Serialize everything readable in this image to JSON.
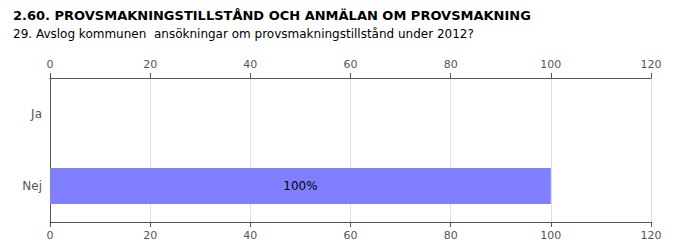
{
  "chart_data": {
    "type": "bar",
    "orientation": "horizontal",
    "title": "2.60. PROVSMAKNINGSTILLSTÅND OCH ANMÄLAN OM PROVSMAKNING",
    "subtitle": "29. Avslog kommunen  ansökningar om provsmakningstillstånd under 2012?",
    "categories": [
      "Ja",
      "Nej"
    ],
    "values": [
      0,
      100
    ],
    "value_labels": [
      null,
      "100%"
    ],
    "data_labels": true,
    "color": "#8080ff",
    "xlim": [
      0,
      120
    ],
    "xticks": [
      0,
      20,
      40,
      60,
      80,
      100,
      120
    ],
    "grid": true
  }
}
